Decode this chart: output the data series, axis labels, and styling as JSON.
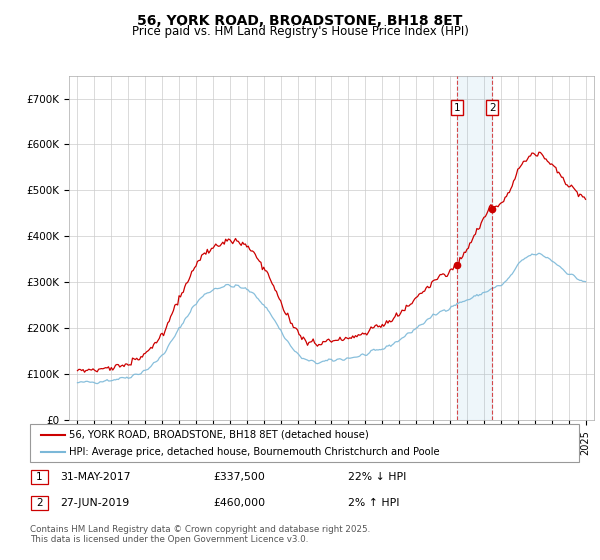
{
  "title": "56, YORK ROAD, BROADSTONE, BH18 8ET",
  "subtitle": "Price paid vs. HM Land Registry's House Price Index (HPI)",
  "ylim": [
    0,
    750000
  ],
  "yticks": [
    0,
    100000,
    200000,
    300000,
    400000,
    500000,
    600000,
    700000
  ],
  "ytick_labels": [
    "£0",
    "£100K",
    "£200K",
    "£300K",
    "£400K",
    "£500K",
    "£600K",
    "£700K"
  ],
  "hpi_color": "#7bb8d8",
  "price_color": "#cc0000",
  "sale1_year": 2017.42,
  "sale1_price": 337500,
  "sale2_year": 2019.49,
  "sale2_price": 460000,
  "legend_line1": "56, YORK ROAD, BROADSTONE, BH18 8ET (detached house)",
  "legend_line2": "HPI: Average price, detached house, Bournemouth Christchurch and Poole",
  "footer": "Contains HM Land Registry data © Crown copyright and database right 2025.\nThis data is licensed under the Open Government Licence v3.0.",
  "background_color": "#ffffff",
  "grid_color": "#cccccc",
  "xmin": 1994.5,
  "xmax": 2025.5
}
